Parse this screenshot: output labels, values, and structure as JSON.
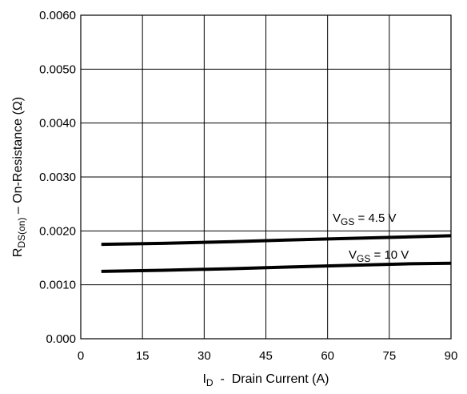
{
  "chart_data": {
    "type": "line",
    "title": "",
    "xlabel": {
      "main": "I",
      "sub": "D",
      "rest": "  -  Drain Current (A)"
    },
    "ylabel": {
      "main": "R",
      "sub": "DS(on)",
      "rest": " – On-Resistance (Ω)"
    },
    "xlim": [
      0,
      90
    ],
    "ylim": [
      0,
      0.006
    ],
    "x_ticks": [
      0,
      15,
      30,
      45,
      60,
      75,
      90
    ],
    "x_tick_labels": [
      "0",
      "15",
      "30",
      "45",
      "60",
      "75",
      "90"
    ],
    "y_ticks": [
      0,
      0.001,
      0.002,
      0.003,
      0.004,
      0.005,
      0.006
    ],
    "y_tick_labels": [
      "0.000",
      "0.0010",
      "0.0020",
      "0.0030",
      "0.0040",
      "0.0050",
      "0.0060"
    ],
    "grid": true,
    "legend": "none",
    "series": [
      {
        "label_main": "V",
        "label_sub": "GS",
        "label_rest": " = 4.5 V",
        "x": [
          5,
          20,
          37,
          50,
          65,
          80,
          90
        ],
        "y": [
          0.00175,
          0.00177,
          0.0018,
          0.00183,
          0.00186,
          0.00189,
          0.00191
        ],
        "color": "#000000"
      },
      {
        "label_main": "V",
        "label_sub": "GS",
        "label_rest": " = 10 V",
        "x": [
          5,
          20,
          37,
          50,
          65,
          80,
          90
        ],
        "y": [
          0.00125,
          0.00127,
          0.0013,
          0.00133,
          0.00136,
          0.00139,
          0.0014
        ],
        "color": "#000000"
      }
    ]
  }
}
